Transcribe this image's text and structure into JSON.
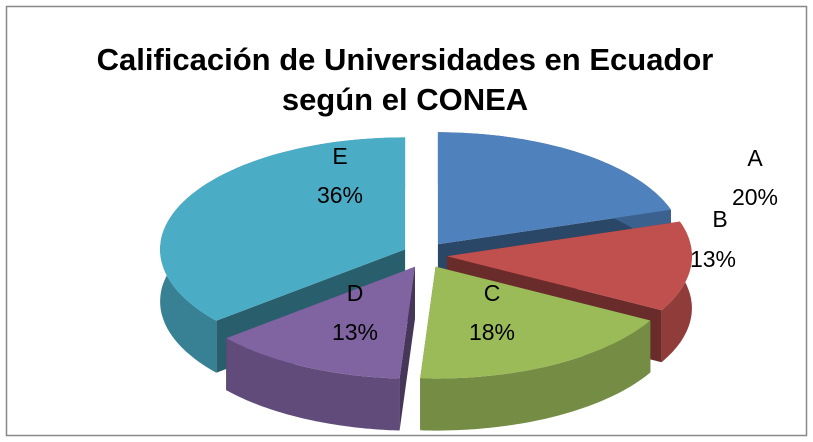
{
  "chart_data": {
    "type": "pie3d",
    "title": "Calificación de Universidades en Ecuador según el CONEA",
    "categories": [
      "A",
      "B",
      "C",
      "D",
      "E"
    ],
    "values": [
      20,
      13,
      18,
      13,
      36
    ],
    "value_labels": [
      "20%",
      "13%",
      "18%",
      "13%",
      "36%"
    ],
    "colors": [
      "#4f81bd",
      "#c0504d",
      "#9bbb59",
      "#8064a2",
      "#4bacc6"
    ]
  }
}
